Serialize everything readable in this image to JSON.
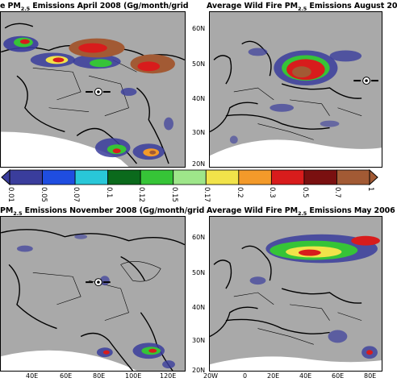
{
  "panels": {
    "top_left": {
      "title_pre": "e PM",
      "title_sub": "2.5",
      "title_post": " Emissions April 2008 (Gg/month/grid",
      "x_ticks": [],
      "y_ticks": []
    },
    "top_right": {
      "title_pre": "Average Wild Fire PM",
      "title_sub": "2.5",
      "title_post": " Emissions August 20",
      "y_ticks": [
        "60N",
        "50N",
        "40N",
        "30N",
        "20N"
      ]
    },
    "bottom_left": {
      "title_pre": "PM",
      "title_sub": "2.5",
      "title_post": " Emissions November 2008 (Gg/month/grid",
      "x_ticks": [
        "40E",
        "60E",
        "80E",
        "100E",
        "120E"
      ]
    },
    "bottom_right": {
      "title_pre": "Average Wild Fire PM",
      "title_sub": "2.5",
      "title_post": " Emissions May 2006",
      "y_ticks": [
        "60N",
        "50N",
        "40N",
        "30N",
        "20N"
      ],
      "x_ticks": [
        "20W",
        "0",
        "20E",
        "40E",
        "60E",
        "80E"
      ]
    }
  },
  "colorbar": {
    "ticks": [
      "0.01",
      "0.05",
      "0.07",
      "0.1",
      "0.12",
      "0.15",
      "0.17",
      "0.2",
      "0.3",
      "0.5",
      "0.7",
      "1"
    ],
    "colors": [
      "#3a3d9c",
      "#1f4de0",
      "#29c7d8",
      "#0b6a1c",
      "#36c437",
      "#9ee68a",
      "#f1e34a",
      "#f39a2a",
      "#d81c1c",
      "#7a1010",
      "#a25a34"
    ]
  },
  "colors": {
    "land": "#a9a9a9",
    "snow": "#ffffff",
    "border": "#000000"
  },
  "icons": {
    "city_marker": "target-marker-icon"
  }
}
